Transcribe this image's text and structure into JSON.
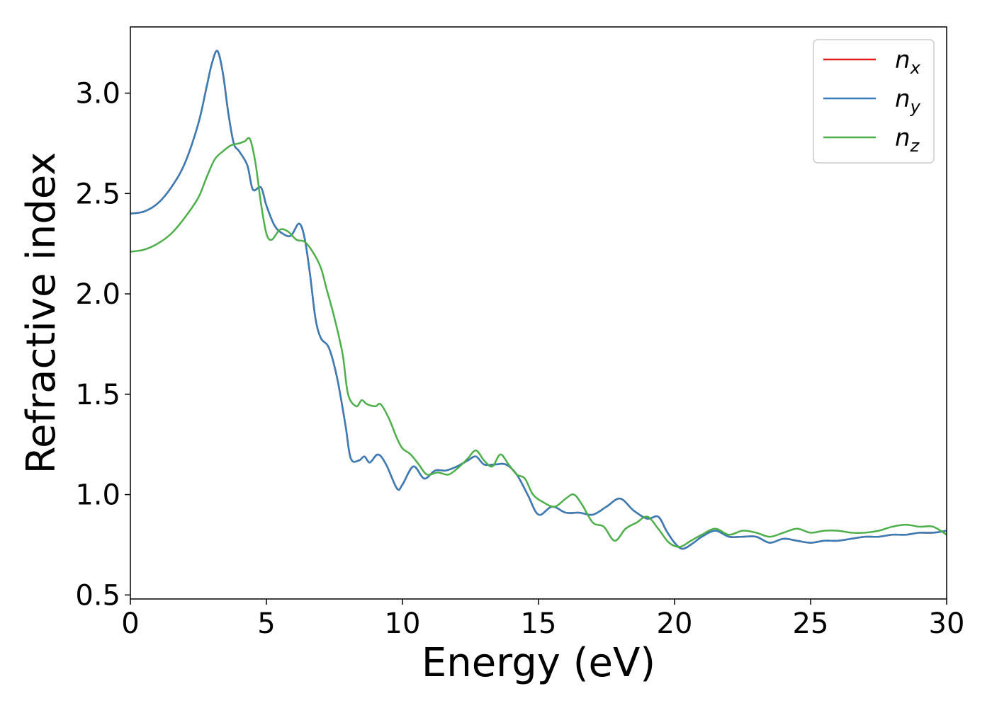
{
  "chart_data": {
    "type": "line",
    "title": "",
    "xlabel": "Energy (eV)",
    "ylabel": "Refractive index",
    "xlim": [
      0,
      30
    ],
    "ylim": [
      0.48,
      3.33
    ],
    "x_ticks": [
      "0",
      "5",
      "10",
      "15",
      "20",
      "25",
      "30"
    ],
    "y_ticks": [
      "0.5",
      "1.0",
      "1.5",
      "2.0",
      "2.5",
      "3.0"
    ],
    "grid": false,
    "legend_position": "top-right",
    "legend": [
      {
        "base": "n",
        "sub": "x",
        "color": "#e41a1c"
      },
      {
        "base": "n",
        "sub": "y",
        "color": "#377eb8"
      },
      {
        "base": "n",
        "sub": "z",
        "color": "#4daf4a"
      }
    ],
    "series": [
      {
        "name": "n_x",
        "color": "#e41a1c",
        "x": [
          0,
          0.5,
          1,
          1.5,
          2,
          2.5,
          2.8,
          3.0,
          3.2,
          3.4,
          3.6,
          3.8,
          4.0,
          4.3,
          4.5,
          4.8,
          5.0,
          5.3,
          5.6,
          5.9,
          6.2,
          6.4,
          6.6,
          6.8,
          7.0,
          7.3,
          7.6,
          7.9,
          8.1,
          8.4,
          8.6,
          8.8,
          9.1,
          9.4,
          9.8,
          10.0,
          10.4,
          10.8,
          11.2,
          11.6,
          12.0,
          12.4,
          12.7,
          13.0,
          13.4,
          13.8,
          14.2,
          14.6,
          15.0,
          15.5,
          16.0,
          16.5,
          17.0,
          17.5,
          18.0,
          18.5,
          19.0,
          19.4,
          19.7,
          20.0,
          20.3,
          20.7,
          21.0,
          21.5,
          22.0,
          22.5,
          23.0,
          23.5,
          24.0,
          24.5,
          25.0,
          25.5,
          26.0,
          26.5,
          27.0,
          27.5,
          28.0,
          28.5,
          29.0,
          29.5,
          30.0
        ],
        "y": [
          2.4,
          2.41,
          2.45,
          2.53,
          2.65,
          2.85,
          3.03,
          3.15,
          3.21,
          3.1,
          2.9,
          2.75,
          2.71,
          2.64,
          2.52,
          2.53,
          2.44,
          2.34,
          2.3,
          2.29,
          2.35,
          2.28,
          2.1,
          1.88,
          1.78,
          1.73,
          1.58,
          1.35,
          1.18,
          1.17,
          1.19,
          1.16,
          1.2,
          1.15,
          1.03,
          1.05,
          1.14,
          1.08,
          1.12,
          1.12,
          1.14,
          1.17,
          1.19,
          1.15,
          1.15,
          1.15,
          1.1,
          1.0,
          0.9,
          0.94,
          0.91,
          0.91,
          0.9,
          0.94,
          0.98,
          0.92,
          0.88,
          0.89,
          0.82,
          0.76,
          0.73,
          0.76,
          0.79,
          0.82,
          0.79,
          0.79,
          0.79,
          0.76,
          0.78,
          0.77,
          0.76,
          0.77,
          0.77,
          0.78,
          0.79,
          0.79,
          0.8,
          0.8,
          0.81,
          0.81,
          0.82
        ]
      },
      {
        "name": "n_y",
        "color": "#377eb8",
        "x": [
          0,
          0.5,
          1,
          1.5,
          2,
          2.5,
          2.8,
          3.0,
          3.2,
          3.4,
          3.6,
          3.8,
          4.0,
          4.3,
          4.5,
          4.8,
          5.0,
          5.3,
          5.6,
          5.9,
          6.2,
          6.4,
          6.6,
          6.8,
          7.0,
          7.3,
          7.6,
          7.9,
          8.1,
          8.4,
          8.6,
          8.8,
          9.1,
          9.4,
          9.8,
          10.0,
          10.4,
          10.8,
          11.2,
          11.6,
          12.0,
          12.4,
          12.7,
          13.0,
          13.4,
          13.8,
          14.2,
          14.6,
          15.0,
          15.5,
          16.0,
          16.5,
          17.0,
          17.5,
          18.0,
          18.5,
          19.0,
          19.4,
          19.7,
          20.0,
          20.3,
          20.7,
          21.0,
          21.5,
          22.0,
          22.5,
          23.0,
          23.5,
          24.0,
          24.5,
          25.0,
          25.5,
          26.0,
          26.5,
          27.0,
          27.5,
          28.0,
          28.5,
          29.0,
          29.5,
          30.0
        ],
        "y": [
          2.4,
          2.41,
          2.45,
          2.53,
          2.65,
          2.85,
          3.03,
          3.15,
          3.21,
          3.1,
          2.9,
          2.75,
          2.71,
          2.64,
          2.52,
          2.53,
          2.44,
          2.34,
          2.3,
          2.29,
          2.35,
          2.28,
          2.1,
          1.88,
          1.78,
          1.73,
          1.58,
          1.35,
          1.18,
          1.17,
          1.19,
          1.16,
          1.2,
          1.15,
          1.03,
          1.05,
          1.14,
          1.08,
          1.12,
          1.12,
          1.14,
          1.17,
          1.19,
          1.15,
          1.15,
          1.15,
          1.1,
          1.0,
          0.9,
          0.94,
          0.91,
          0.91,
          0.9,
          0.94,
          0.98,
          0.92,
          0.88,
          0.89,
          0.82,
          0.76,
          0.73,
          0.76,
          0.79,
          0.82,
          0.79,
          0.79,
          0.79,
          0.76,
          0.78,
          0.77,
          0.76,
          0.77,
          0.77,
          0.78,
          0.79,
          0.79,
          0.8,
          0.8,
          0.81,
          0.81,
          0.82
        ]
      },
      {
        "name": "n_z",
        "color": "#4daf4a",
        "x": [
          0,
          0.5,
          1,
          1.5,
          2,
          2.5,
          2.8,
          3.1,
          3.4,
          3.7,
          4.0,
          4.2,
          4.4,
          4.6,
          4.8,
          5.0,
          5.2,
          5.5,
          5.8,
          6.1,
          6.4,
          6.7,
          7.0,
          7.2,
          7.5,
          7.8,
          8.0,
          8.3,
          8.5,
          8.7,
          9.0,
          9.2,
          9.5,
          9.8,
          10.0,
          10.3,
          10.6,
          10.9,
          11.3,
          11.7,
          12.1,
          12.4,
          12.7,
          13.0,
          13.3,
          13.6,
          13.9,
          14.2,
          14.5,
          14.8,
          15.2,
          15.6,
          16.0,
          16.3,
          16.6,
          17.0,
          17.4,
          17.8,
          18.2,
          18.6,
          19.0,
          19.4,
          19.8,
          20.2,
          20.6,
          21.0,
          21.5,
          22.0,
          22.5,
          23.0,
          23.5,
          24.0,
          24.5,
          25.0,
          25.5,
          26.0,
          26.5,
          27.0,
          27.5,
          28.0,
          28.5,
          29.0,
          29.5,
          30.0
        ],
        "y": [
          2.21,
          2.22,
          2.25,
          2.3,
          2.38,
          2.48,
          2.58,
          2.67,
          2.71,
          2.74,
          2.75,
          2.76,
          2.77,
          2.65,
          2.45,
          2.3,
          2.27,
          2.32,
          2.31,
          2.27,
          2.26,
          2.21,
          2.13,
          2.03,
          1.88,
          1.7,
          1.5,
          1.44,
          1.47,
          1.45,
          1.44,
          1.45,
          1.38,
          1.28,
          1.23,
          1.2,
          1.15,
          1.1,
          1.11,
          1.1,
          1.14,
          1.18,
          1.22,
          1.17,
          1.14,
          1.2,
          1.15,
          1.1,
          1.08,
          1.0,
          0.96,
          0.94,
          0.98,
          1.0,
          0.95,
          0.86,
          0.84,
          0.77,
          0.83,
          0.86,
          0.89,
          0.83,
          0.76,
          0.74,
          0.77,
          0.8,
          0.83,
          0.8,
          0.82,
          0.81,
          0.79,
          0.81,
          0.83,
          0.81,
          0.82,
          0.82,
          0.81,
          0.81,
          0.82,
          0.84,
          0.85,
          0.84,
          0.84,
          0.8
        ]
      }
    ]
  }
}
